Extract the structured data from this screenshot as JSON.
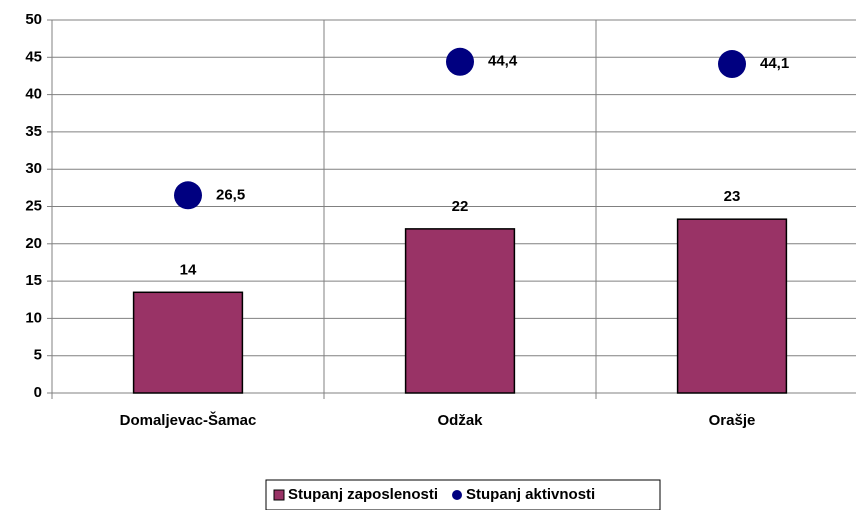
{
  "chart_data": {
    "type": "bar",
    "categories": [
      "Domaljevac-Šamac",
      "Odžak",
      "Orašje"
    ],
    "series": [
      {
        "name": "Stupanj zaposlenosti",
        "type": "bar",
        "color": "#993366",
        "values": [
          13.5,
          22,
          23.3
        ],
        "value_labels": [
          "14",
          "22",
          "23"
        ]
      },
      {
        "name": "Stupanj aktivnosti",
        "type": "scatter",
        "color": "#000080",
        "values": [
          26.5,
          44.4,
          44.1
        ],
        "value_labels": [
          "26,5",
          "44,4",
          "44,1"
        ]
      }
    ],
    "ylim": [
      0,
      50
    ],
    "yticks": [
      0,
      5,
      10,
      15,
      20,
      25,
      30,
      35,
      40,
      45,
      50
    ],
    "grid": true,
    "legend": "bottom"
  }
}
